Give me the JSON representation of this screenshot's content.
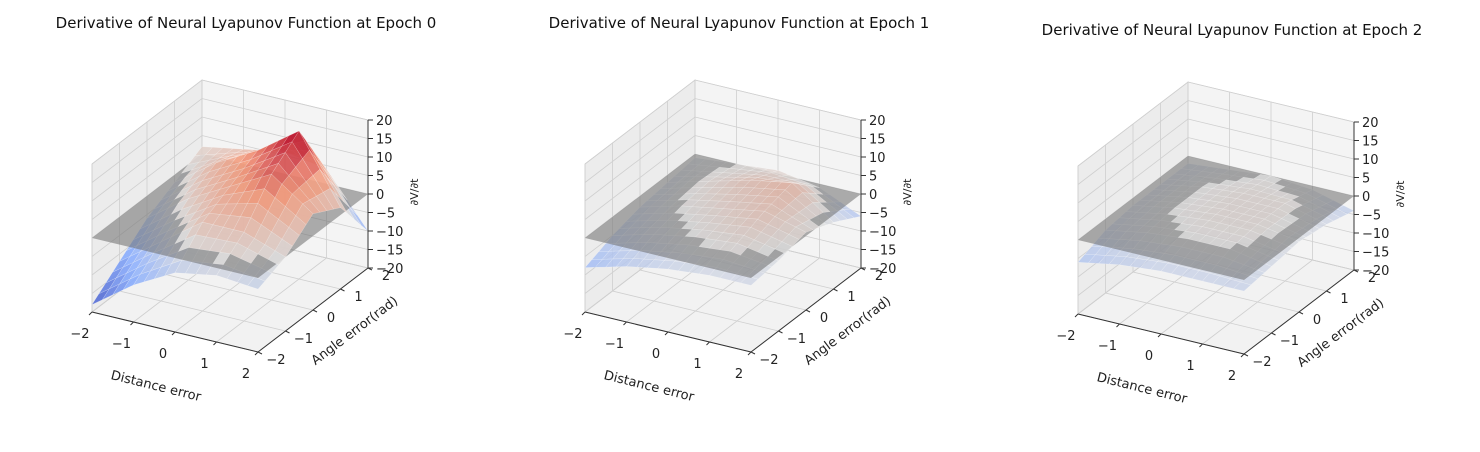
{
  "chart_data": [
    {
      "type": "surface3d",
      "title": "Derivative of Neural Lyapunov Function at Epoch 0",
      "xlabel": "Distance error",
      "ylabel": "Angle error(rad)",
      "zlabel": "∂V/∂t",
      "xlim": [
        -2,
        2
      ],
      "ylim": [
        -2,
        2
      ],
      "zlim": [
        -20,
        20
      ],
      "x_ticks": [
        "−2",
        "−1",
        "0",
        "1",
        "2"
      ],
      "y_ticks": [
        "−2",
        "−1",
        "0",
        "1",
        "2"
      ],
      "z_ticks": [
        "20",
        "15",
        "10",
        "5",
        "0",
        "−5",
        "−10",
        "−15",
        "−20"
      ],
      "x": [
        -2,
        -1,
        0,
        1,
        2
      ],
      "y": [
        -2,
        -1,
        0,
        1,
        2
      ],
      "z": [
        [
          -18,
          -12,
          -6,
          -2,
          2
        ],
        [
          -10,
          -4,
          2,
          6,
          4
        ],
        [
          -4,
          4,
          8,
          12,
          6
        ],
        [
          -2,
          4,
          14,
          20,
          4
        ],
        [
          -3,
          0,
          6,
          2,
          -10
        ]
      ],
      "plane_z": 0,
      "colormap": "coolwarm",
      "grid": true
    },
    {
      "type": "surface3d",
      "title": "Derivative of Neural Lyapunov Function at Epoch 1",
      "xlabel": "Distance error",
      "ylabel": "Angle error(rad)",
      "zlabel": "∂V/∂t",
      "xlim": [
        -2,
        2
      ],
      "ylim": [
        -2,
        2
      ],
      "zlim": [
        -20,
        20
      ],
      "x_ticks": [
        "−2",
        "−1",
        "0",
        "1",
        "2"
      ],
      "y_ticks": [
        "−2",
        "−1",
        "0",
        "1",
        "2"
      ],
      "z_ticks": [
        "20",
        "15",
        "10",
        "5",
        "0",
        "−5",
        "−10",
        "−15",
        "−20"
      ],
      "x": [
        -2,
        -1,
        0,
        1,
        2
      ],
      "y": [
        -2,
        -1,
        0,
        1,
        2
      ],
      "z": [
        [
          -8,
          -5,
          -3,
          -2,
          -1
        ],
        [
          -5,
          -2,
          0,
          1,
          0
        ],
        [
          -3,
          0,
          2,
          4,
          1
        ],
        [
          -2,
          1,
          4,
          6,
          -1
        ],
        [
          -2,
          -1,
          1,
          -2,
          -6
        ]
      ],
      "plane_z": 0,
      "colormap": "coolwarm",
      "grid": true
    },
    {
      "type": "surface3d",
      "title": "Derivative of Neural Lyapunov Function at Epoch 2",
      "xlabel": "Distance error",
      "ylabel": "Angle error(rad)",
      "zlabel": "∂V/∂t",
      "xlim": [
        -2,
        2
      ],
      "ylim": [
        -2,
        2
      ],
      "zlim": [
        -20,
        20
      ],
      "x_ticks": [
        "−2",
        "−1",
        "0",
        "1",
        "2"
      ],
      "y_ticks": [
        "−2",
        "−1",
        "0",
        "1",
        "2"
      ],
      "z_ticks": [
        "20",
        "15",
        "10",
        "5",
        "0",
        "−5",
        "−10",
        "−15",
        "−20"
      ],
      "x": [
        -2,
        -1,
        0,
        1,
        2
      ],
      "y": [
        -2,
        -1,
        0,
        1,
        2
      ],
      "z": [
        [
          -6,
          -3,
          -2,
          -2,
          -2
        ],
        [
          -4,
          -1,
          0,
          0,
          -1
        ],
        [
          -3,
          0,
          1,
          1,
          0
        ],
        [
          -3,
          0,
          1,
          1,
          -1
        ],
        [
          -3,
          -2,
          -1,
          -2,
          -4
        ]
      ],
      "plane_z": 0,
      "colormap": "coolwarm",
      "grid": true
    }
  ]
}
